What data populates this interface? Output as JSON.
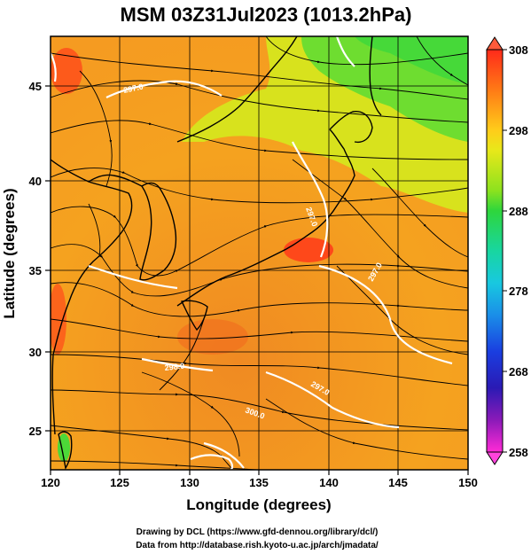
{
  "title": "MSM 03Z31Jul2023 (1013.2hPa)",
  "x_axis": {
    "label": "Longitude (degrees)",
    "ticks": [
      "120",
      "125",
      "130",
      "135",
      "140",
      "145",
      "150"
    ]
  },
  "y_axis": {
    "label": "Latitude  (degrees)",
    "ticks": [
      "25",
      "30",
      "35",
      "40",
      "45"
    ]
  },
  "colorbar": {
    "ticks": [
      "308",
      "298",
      "288",
      "278",
      "268",
      "258"
    ]
  },
  "contour_labels": [
    "297.0",
    "297.0",
    "297.0",
    "298.0",
    "300.0",
    "297.0"
  ],
  "footer": {
    "line1": "Drawing by DCL (https://www.gfd-dennou.org/library/dcl/)",
    "line2": "Data from http://database.rish.kyoto-u.ac.jp/arch/jmadata/"
  },
  "colors": {
    "warm": "#f07d1e",
    "hot": "#ff3a1a",
    "mild": "#c8e21e",
    "cool": "#3cd83c",
    "ink": "#000000",
    "contour": "#ffffff"
  }
}
